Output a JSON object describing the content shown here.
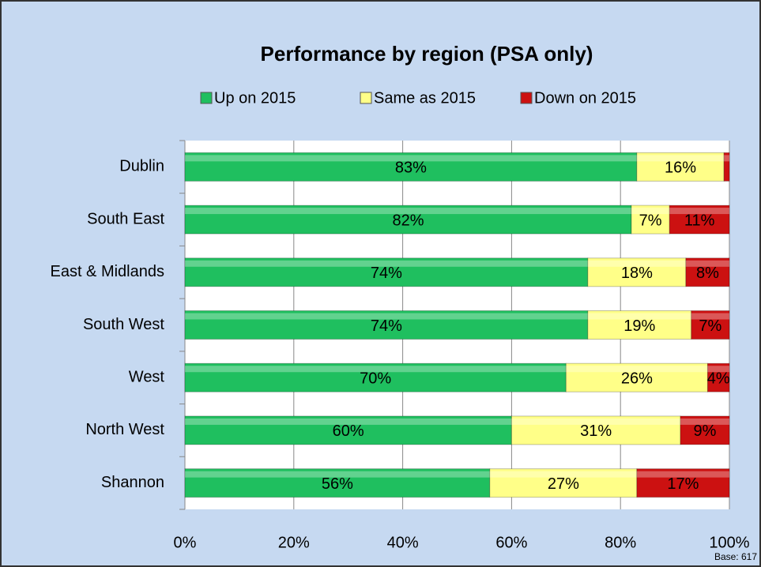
{
  "chart_data": {
    "type": "stacked-bar-horizontal",
    "title": "Performance by region (PSA only)",
    "categories": [
      "Dublin",
      "South East",
      "East & Midlands",
      "South West",
      "West",
      "North West",
      "Shannon"
    ],
    "series": [
      {
        "name": "Up on 2015",
        "color": "#1fbf5f",
        "values": [
          83,
          82,
          74,
          74,
          70,
          60,
          56
        ],
        "value_labels": [
          "83%",
          "82%",
          "74%",
          "74%",
          "70%",
          "60%",
          "56%"
        ]
      },
      {
        "name": "Same as 2015",
        "color": "#ffff88",
        "values": [
          16,
          7,
          18,
          19,
          26,
          31,
          27
        ],
        "value_labels": [
          "16%",
          "7%",
          "18%",
          "19%",
          "26%",
          "31%",
          "27%"
        ]
      },
      {
        "name": "Down on 2015",
        "color": "#cc1111",
        "values": [
          1,
          11,
          8,
          7,
          4,
          9,
          17
        ],
        "value_labels": [
          null,
          "11%",
          "8%",
          "7%",
          "4%",
          "9%",
          "17%"
        ]
      }
    ],
    "xlim": [
      0,
      100
    ],
    "xticks": [
      {
        "value": 0,
        "label": "0%"
      },
      {
        "value": 20,
        "label": "20%"
      },
      {
        "value": 40,
        "label": "40%"
      },
      {
        "value": 60,
        "label": "60%"
      },
      {
        "value": 80,
        "label": "80%"
      },
      {
        "value": 100,
        "label": "100%"
      }
    ],
    "grid": true,
    "annotation": "Base: 617"
  }
}
